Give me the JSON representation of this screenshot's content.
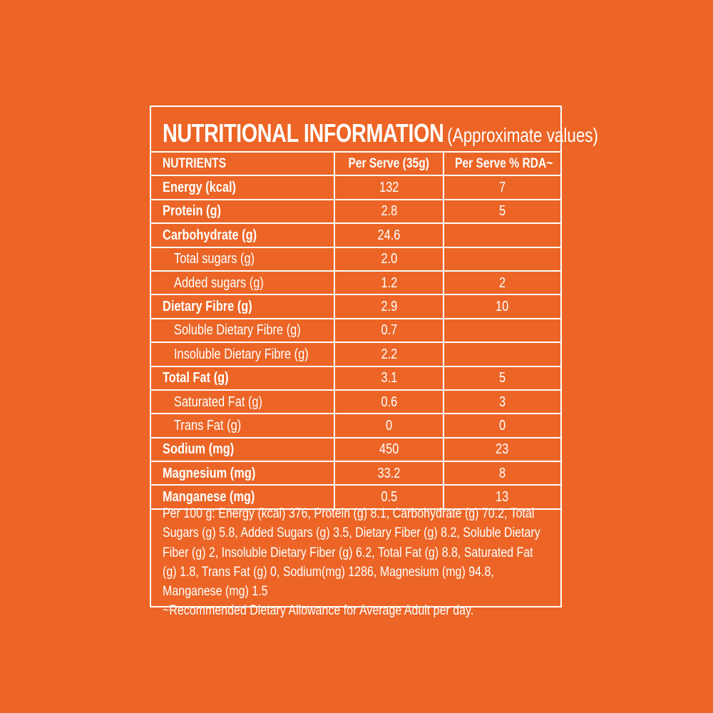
{
  "panel": {
    "title": "NUTRITIONAL INFORMATION",
    "subtitle": "(Approximate values)"
  },
  "table": {
    "headers": [
      "NUTRIENTS",
      "Per Serve (35g)",
      "Per Serve % RDA~"
    ],
    "rows": [
      {
        "name": "Energy (kcal)",
        "per_serve": "132",
        "rda": "7",
        "level": "main"
      },
      {
        "name": "Protein (g)",
        "per_serve": "2.8",
        "rda": "5",
        "level": "main"
      },
      {
        "name": "Carbohydrate (g)",
        "per_serve": "24.6",
        "rda": "",
        "level": "main"
      },
      {
        "name": "Total sugars (g)",
        "per_serve": "2.0",
        "rda": "",
        "level": "sub"
      },
      {
        "name": "Added sugars (g)",
        "per_serve": "1.2",
        "rda": "2",
        "level": "sub"
      },
      {
        "name": "Dietary Fibre (g)",
        "per_serve": "2.9",
        "rda": "10",
        "level": "main"
      },
      {
        "name": "Soluble Dietary Fibre (g)",
        "per_serve": "0.7",
        "rda": "",
        "level": "sub"
      },
      {
        "name": "Insoluble Dietary Fibre (g)",
        "per_serve": "2.2",
        "rda": "",
        "level": "sub"
      },
      {
        "name": "Total Fat (g)",
        "per_serve": "3.1",
        "rda": "5",
        "level": "main"
      },
      {
        "name": "Saturated Fat (g)",
        "per_serve": "0.6",
        "rda": "3",
        "level": "sub"
      },
      {
        "name": "Trans Fat (g)",
        "per_serve": "0",
        "rda": "0",
        "level": "sub"
      },
      {
        "name": "Sodium (mg)",
        "per_serve": "450",
        "rda": "23",
        "level": "main"
      },
      {
        "name": "Magnesium (mg)",
        "per_serve": "33.2",
        "rda": "8",
        "level": "main"
      },
      {
        "name": "Manganese (mg)",
        "per_serve": "0.5",
        "rda": "13",
        "level": "main"
      }
    ]
  },
  "footnote": {
    "per_100g": "Per 100 g: Energy (kcal) 376, Protein (g) 8.1, Carbohydrate (g) 70.2, Total Sugars (g) 5.8, Added Sugars (g) 3.5, Dietary Fiber (g) 8.2, Soluble Dietary Fiber (g) 2, Insoluble Dietary Fiber (g) 6.2, Total Fat (g) 8.8, Saturated Fat (g) 1.8, Trans Fat (g) 0, Sodium(mg) 1286, Magnesium (mg) 94.8, Manganese (mg) 1.5",
    "rda_note": "~Recommended Dietary Allowance for Average Adult per day."
  },
  "colors": {
    "background": "#ec6526",
    "foreground": "#ffffff"
  }
}
